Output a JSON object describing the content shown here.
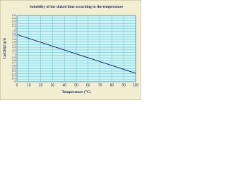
{
  "chart_data": {
    "type": "line",
    "title": "Solubility of the slaked lime according to the temperature",
    "x_label": "Temperature (°C)",
    "y_label": "Ca(OH)2 (g/l)",
    "x": [
      0,
      100
    ],
    "series": [
      {
        "name": "Ca(OH)2",
        "color": "#1a2a6c",
        "values": [
          1.78,
          0.32
        ]
      }
    ],
    "xlim": [
      0,
      100
    ],
    "xticks": [
      0,
      10,
      20,
      30,
      40,
      50,
      60,
      70,
      80,
      90,
      100
    ],
    "ylim": [
      0,
      2.5
    ],
    "yticks": [
      0,
      0.1,
      0.2,
      0.3,
      0.4,
      0.5,
      0.6,
      0.7,
      0.8,
      0.9,
      1,
      1.1,
      1.2,
      1.3,
      1.4,
      1.5,
      1.6,
      1.7,
      1.8,
      1.9,
      2,
      2.1,
      2.2,
      2.3,
      2.4,
      2.5
    ],
    "grid": true
  }
}
